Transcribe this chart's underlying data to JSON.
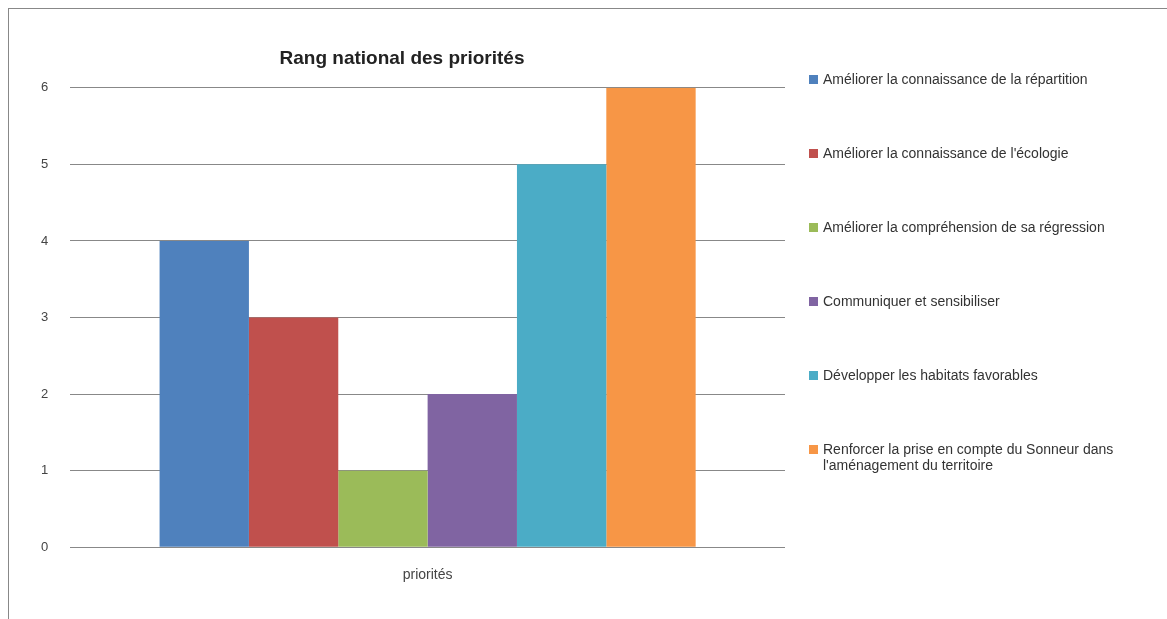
{
  "chart_data": {
    "type": "bar",
    "title": "Rang national des priorités",
    "categories": [
      "priorités"
    ],
    "series": [
      {
        "name": "Améliorer la connaissance de la répartition",
        "color": "#4f81bd",
        "values": [
          4
        ]
      },
      {
        "name": "Améliorer la connaissance de l'écologie",
        "color": "#c0504d",
        "values": [
          3
        ]
      },
      {
        "name": "Améliorer la compréhension de sa régression",
        "color": "#9bbb59",
        "values": [
          1
        ]
      },
      {
        "name": "Communiquer et sensibiliser",
        "color": "#8064a2",
        "values": [
          2
        ]
      },
      {
        "name": "Développer les habitats favorables",
        "color": "#4bacc6",
        "values": [
          5
        ]
      },
      {
        "name": "Renforcer la prise en compte du Sonneur dans l'aménagement du territoire",
        "color": "#f79646",
        "values": [
          6
        ]
      }
    ],
    "ylim": [
      0,
      6
    ],
    "yticks": [
      0,
      1,
      2,
      3,
      4,
      5,
      6
    ],
    "grid": "y",
    "legend": "right"
  }
}
